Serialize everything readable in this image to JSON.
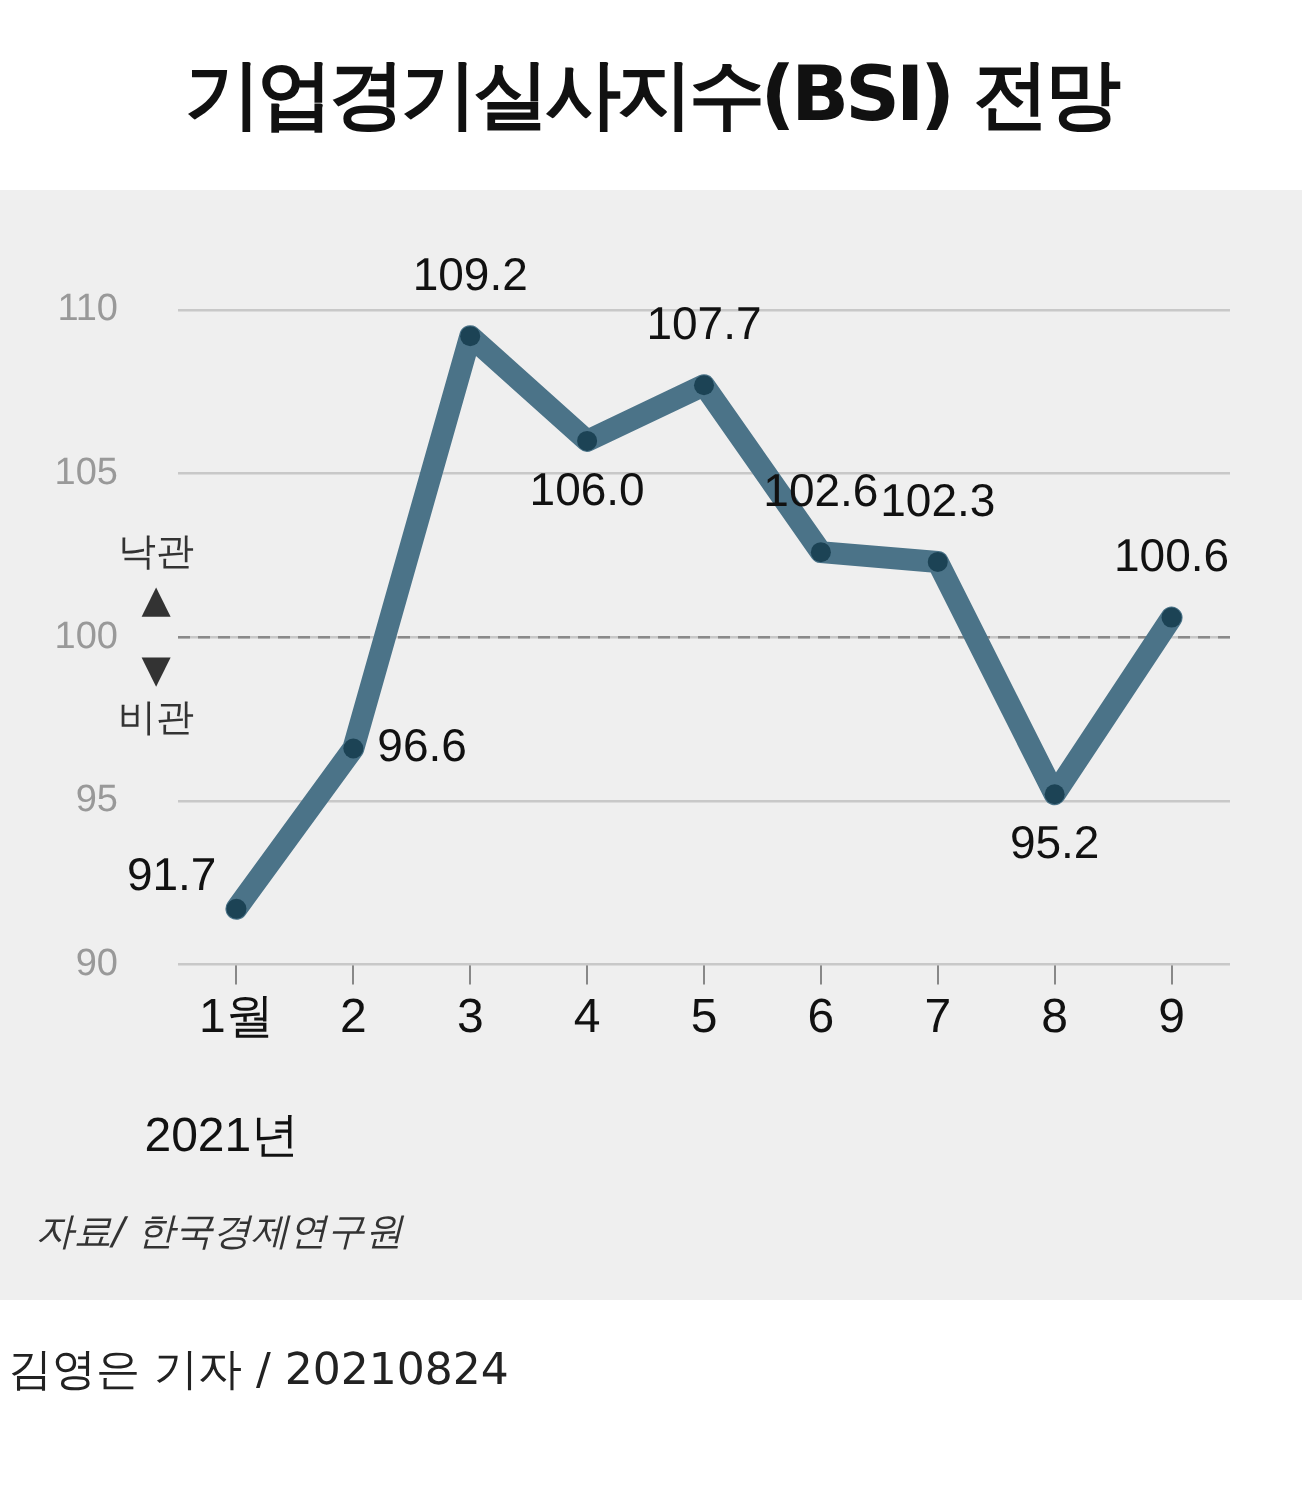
{
  "chart_data": {
    "type": "line",
    "title": "기업경기실사지수(BSI) 전망",
    "categories": [
      "1월",
      "2",
      "3",
      "4",
      "5",
      "6",
      "7",
      "8",
      "9"
    ],
    "xlabel": "2021년",
    "series": [
      {
        "color": "#4b7388",
        "values": [
          91.7,
          96.6,
          109.2,
          106.0,
          107.7,
          102.6,
          102.3,
          95.2,
          100.6
        ]
      }
    ],
    "value_labels": [
      "91.7",
      "96.6",
      "109.2",
      "106.0",
      "107.7",
      "102.6",
      "102.3",
      "95.2",
      "100.6"
    ],
    "ylim": [
      90,
      110
    ],
    "yticks": [
      90,
      95,
      100,
      105,
      110
    ],
    "grid": "y",
    "legend": false,
    "marker": "circle",
    "line_style": "solid",
    "ref_lines": [
      {
        "axis": "y",
        "value": 100,
        "color": "#8a8a8a",
        "line_style": "dashed"
      }
    ],
    "annotations": [
      "낙관 ▲",
      "▼ 비관",
      "자료/ 한국경제연구원",
      "김영은 기자 / 20210824"
    ]
  }
}
